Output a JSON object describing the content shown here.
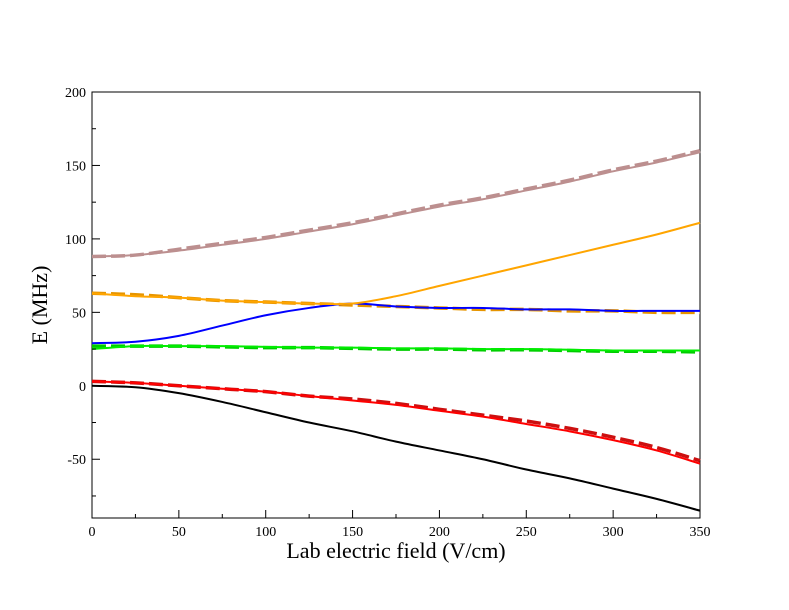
{
  "chart_data": {
    "type": "line",
    "title": "",
    "xlabel": "Lab electric field (V/cm)",
    "ylabel": "E (MHz)",
    "xlim": [
      0,
      350
    ],
    "ylim": [
      -90,
      200
    ],
    "x_ticks": [
      0,
      50,
      100,
      150,
      200,
      250,
      300,
      350
    ],
    "y_ticks": [
      -50,
      0,
      50,
      100,
      150,
      200
    ],
    "x_tick_labels": [
      "0",
      "50",
      "100",
      "150",
      "200",
      "250",
      "300",
      "350"
    ],
    "y_tick_labels": [
      "-50",
      "0",
      "50",
      "100",
      "150",
      "200"
    ],
    "grid": false,
    "x": [
      0,
      25,
      50,
      75,
      100,
      125,
      150,
      175,
      200,
      225,
      250,
      275,
      300,
      325,
      350
    ],
    "series": [
      {
        "name": "black solid",
        "color": "#000000",
        "dashed": false,
        "values": [
          0,
          -1,
          -5,
          -11,
          -18,
          -25,
          -31,
          -38,
          -44,
          -50,
          -57,
          -63,
          -70,
          -77,
          -85
        ]
      },
      {
        "name": "red solid",
        "color": "#ff0000",
        "dashed": false,
        "values": [
          3,
          2,
          0,
          -2,
          -4,
          -7,
          -10,
          -13,
          -17,
          -21,
          -26,
          -31,
          -37,
          -44,
          -53
        ]
      },
      {
        "name": "red dashed",
        "color": "#cc1010",
        "dashed": true,
        "values": [
          3,
          2,
          0,
          -2,
          -4,
          -7,
          -9,
          -12,
          -16,
          -20,
          -24,
          -29,
          -35,
          -42,
          -51
        ]
      },
      {
        "name": "green solid",
        "color": "#00ee00",
        "dashed": false,
        "values": [
          25,
          27,
          27,
          27,
          26.5,
          26,
          26,
          25.5,
          25.5,
          25,
          25,
          24.5,
          24,
          24,
          24
        ]
      },
      {
        "name": "green dashed",
        "color": "#00cc00",
        "dashed": true,
        "values": [
          27,
          27,
          27,
          26.5,
          26,
          26,
          25.5,
          25,
          25,
          24.5,
          24.5,
          24,
          23.5,
          23.5,
          23
        ]
      },
      {
        "name": "blue solid",
        "color": "#0000ff",
        "dashed": false,
        "values": [
          29,
          30,
          34,
          41,
          48,
          53,
          56,
          54,
          53,
          53,
          52,
          52,
          51,
          51,
          51
        ]
      },
      {
        "name": "orange solid",
        "color": "#ffa500",
        "dashed": false,
        "values": [
          63,
          61,
          60,
          58,
          57,
          56,
          56,
          61,
          68,
          75,
          82,
          89,
          96,
          103,
          111
        ]
      },
      {
        "name": "orange dashed",
        "color": "#e69500",
        "dashed": true,
        "values": [
          63,
          62,
          60,
          58,
          57,
          56,
          55,
          54,
          53,
          52,
          52,
          51,
          51,
          50,
          50
        ]
      },
      {
        "name": "rosy brown solid",
        "color": "#bc8f8f",
        "dashed": false,
        "values": [
          88,
          89,
          92,
          96,
          100,
          105,
          110,
          116,
          122,
          127,
          133,
          139,
          146,
          152,
          159
        ]
      },
      {
        "name": "rosy brown dashed",
        "color": "#bc8f8f",
        "dashed": true,
        "values": [
          88,
          89,
          93,
          97,
          101,
          106,
          111,
          117,
          123,
          128,
          134,
          140,
          147,
          153,
          160
        ]
      }
    ]
  }
}
